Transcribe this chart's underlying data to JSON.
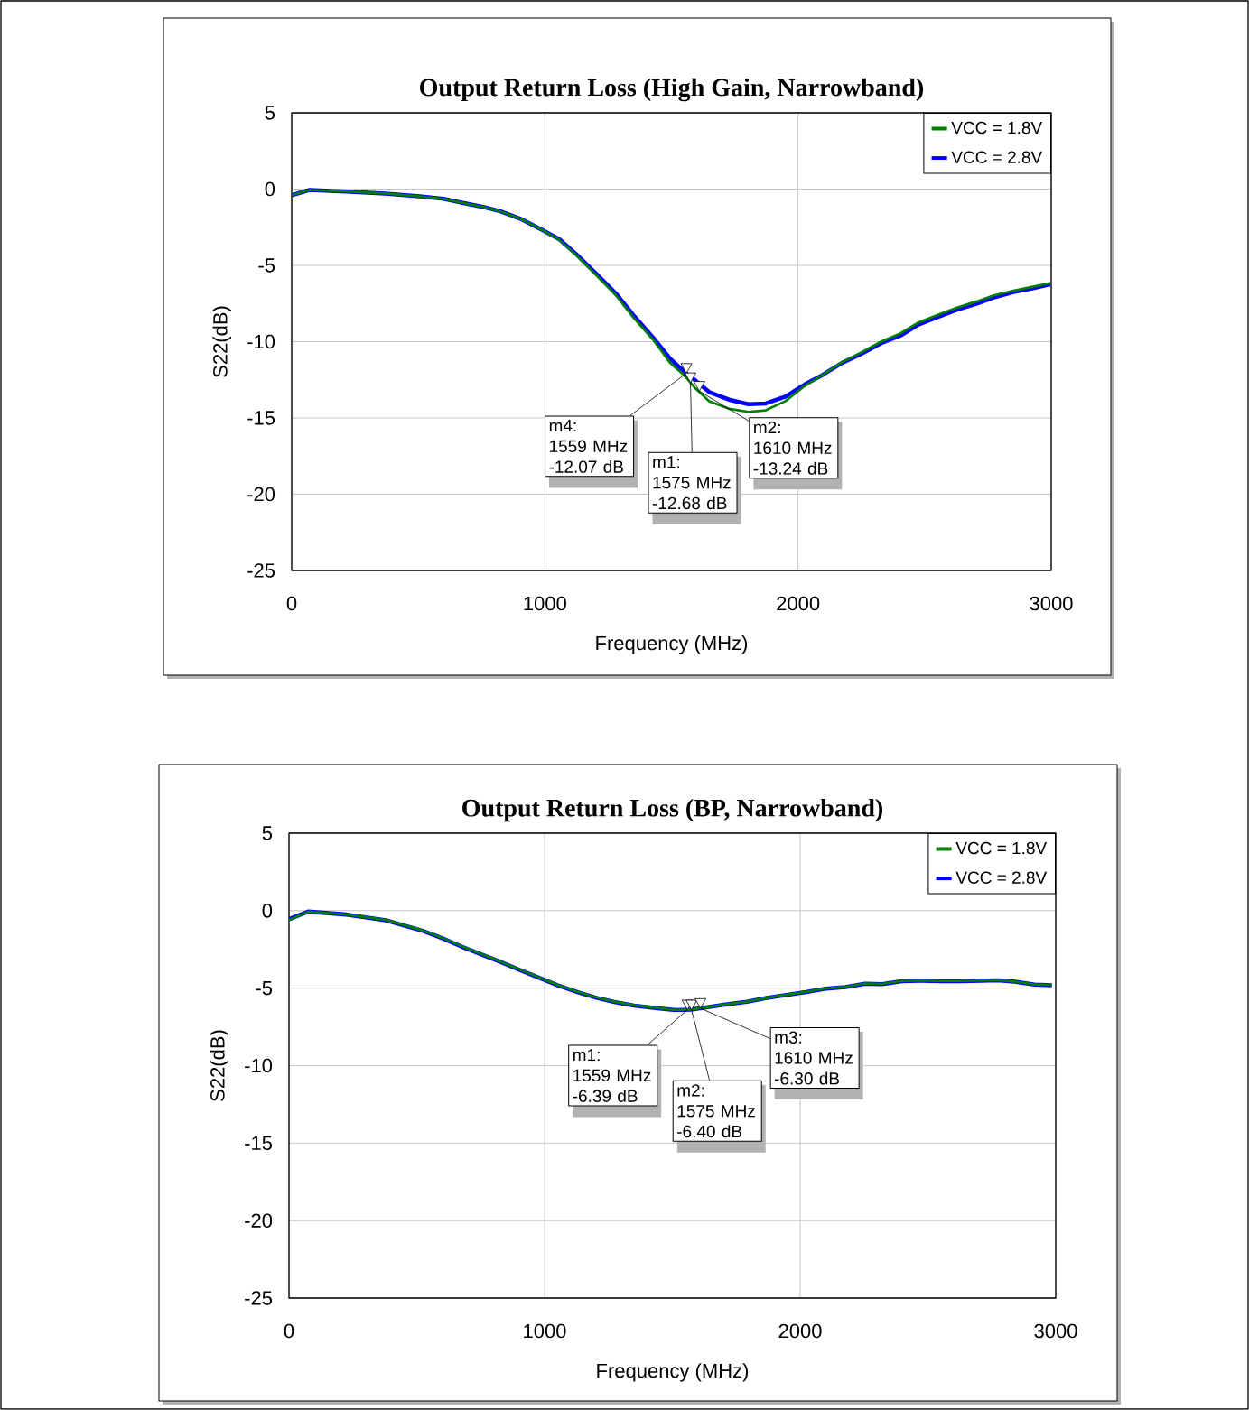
{
  "chart_data": [
    {
      "type": "line",
      "title": "Output Return Loss (High Gain, Narrowband)",
      "xlabel": "Frequency (MHz)",
      "ylabel": "S22(dB)",
      "xlim": [
        0,
        3000
      ],
      "ylim": [
        -25,
        5
      ],
      "xticks": [
        0,
        1000,
        2000,
        3000
      ],
      "yticks": [
        -25,
        -20,
        -15,
        -10,
        -5,
        0,
        5
      ],
      "grid": true,
      "legend": "top right",
      "series": [
        {
          "name": "VCC = 1.8V",
          "color": "#008000",
          "x": [
            0,
            70,
            215,
            370,
            505,
            600,
            680,
            760,
            825,
            903,
            990,
            1058,
            1126,
            1203,
            1281,
            1349,
            1426,
            1494,
            1552,
            1591,
            1649,
            1727,
            1804,
            1872,
            1950,
            2027,
            2095,
            2173,
            2250,
            2328,
            2405,
            2473,
            2550,
            2628,
            2706,
            2773,
            2851,
            2928,
            2996
          ],
          "values": [
            -0.4,
            -0.06,
            -0.16,
            -0.29,
            -0.48,
            -0.64,
            -0.92,
            -1.18,
            -1.46,
            -1.94,
            -2.68,
            -3.34,
            -4.36,
            -5.64,
            -6.97,
            -8.41,
            -9.84,
            -11.37,
            -12.23,
            -13.0,
            -13.9,
            -14.4,
            -14.6,
            -14.5,
            -13.9,
            -12.9,
            -12.2,
            -11.35,
            -10.7,
            -10.0,
            -9.45,
            -8.76,
            -8.25,
            -7.77,
            -7.36,
            -6.97,
            -6.66,
            -6.4,
            -6.15
          ]
        },
        {
          "name": "VCC = 2.8V",
          "color": "#0000ff",
          "x": [
            0,
            70,
            215,
            370,
            505,
            600,
            680,
            760,
            825,
            903,
            990,
            1058,
            1126,
            1203,
            1281,
            1349,
            1426,
            1494,
            1552,
            1591,
            1649,
            1727,
            1804,
            1872,
            1950,
            2027,
            2095,
            2173,
            2250,
            2328,
            2405,
            2473,
            2550,
            2628,
            2706,
            2773,
            2851,
            2928,
            2996
          ],
          "values": [
            -0.4,
            -0.06,
            -0.16,
            -0.29,
            -0.48,
            -0.64,
            -0.92,
            -1.18,
            -1.46,
            -1.94,
            -2.68,
            -3.3,
            -4.3,
            -5.55,
            -6.85,
            -8.25,
            -9.7,
            -11.1,
            -12.0,
            -12.5,
            -13.3,
            -13.8,
            -14.1,
            -14.05,
            -13.6,
            -12.8,
            -12.2,
            -11.4,
            -10.8,
            -10.1,
            -9.6,
            -8.9,
            -8.4,
            -7.9,
            -7.5,
            -7.1,
            -6.75,
            -6.5,
            -6.25
          ]
        }
      ],
      "annotations": [
        {
          "text": "m4:\n1559 MHz\n-12.07 dB",
          "x": 1559,
          "y": -12.07
        },
        {
          "text": "m1:\n1575 MHz\n-12.68 dB",
          "x": 1575,
          "y": -12.68
        },
        {
          "text": "m2:\n1610 MHz\n-13.24 dB",
          "x": 1610,
          "y": -13.24
        }
      ]
    },
    {
      "type": "line",
      "title": "Output Return Loss (BP, Narrowband)",
      "xlabel": "Frequency (MHz)",
      "ylabel": "S22(dB)",
      "xlim": [
        0,
        3000
      ],
      "ylim": [
        -25,
        5
      ],
      "xticks": [
        0,
        1000,
        2000,
        3000
      ],
      "yticks": [
        -25,
        -20,
        -15,
        -10,
        -5,
        0,
        5
      ],
      "grid": true,
      "legend": "top right",
      "series": [
        {
          "name": "VCC = 1.8V",
          "color": "#008000",
          "x": [
            0,
            75,
            225,
            379,
            523,
            600,
            677,
            821,
            908,
            985,
            1052,
            1129,
            1206,
            1273,
            1350,
            1427,
            1513,
            1571,
            1638,
            1715,
            1792,
            1869,
            1946,
            2023,
            2100,
            2177,
            2254,
            2321,
            2398,
            2475,
            2552,
            2629,
            2706,
            2773,
            2840,
            2917,
            2985
          ],
          "values": [
            -0.6,
            -0.06,
            -0.25,
            -0.6,
            -1.27,
            -1.75,
            -2.3,
            -3.24,
            -3.84,
            -4.35,
            -4.8,
            -5.24,
            -5.62,
            -5.87,
            -6.1,
            -6.25,
            -6.41,
            -6.38,
            -6.22,
            -6.03,
            -5.87,
            -5.62,
            -5.43,
            -5.24,
            -5.02,
            -4.92,
            -4.7,
            -4.73,
            -4.54,
            -4.51,
            -4.54,
            -4.54,
            -4.51,
            -4.48,
            -4.57,
            -4.76,
            -4.8
          ]
        },
        {
          "name": "VCC = 2.8V",
          "color": "#0000ff",
          "x": [
            0,
            75,
            225,
            379,
            523,
            600,
            677,
            821,
            908,
            985,
            1052,
            1129,
            1206,
            1273,
            1350,
            1427,
            1513,
            1571,
            1638,
            1715,
            1792,
            1869,
            1946,
            2023,
            2100,
            2177,
            2254,
            2321,
            2398,
            2475,
            2552,
            2629,
            2706,
            2773,
            2840,
            2917,
            2985
          ],
          "values": [
            -0.55,
            -0.06,
            -0.25,
            -0.62,
            -1.3,
            -1.78,
            -2.33,
            -3.27,
            -3.86,
            -4.37,
            -4.82,
            -5.26,
            -5.64,
            -5.89,
            -6.12,
            -6.27,
            -6.42,
            -6.39,
            -6.23,
            -6.04,
            -5.88,
            -5.63,
            -5.44,
            -5.25,
            -5.03,
            -4.93,
            -4.71,
            -4.74,
            -4.55,
            -4.52,
            -4.55,
            -4.55,
            -4.52,
            -4.49,
            -4.58,
            -4.77,
            -4.81
          ]
        }
      ],
      "annotations": [
        {
          "text": "m1:\n1559 MHz\n-6.39 dB",
          "x": 1559,
          "y": -6.39
        },
        {
          "text": "m2:\n1575 MHz\n-6.40 dB",
          "x": 1575,
          "y": -6.4
        },
        {
          "text": "m3:\n1610 MHz\n-6.30 dB",
          "x": 1610,
          "y": -6.3
        }
      ]
    }
  ]
}
